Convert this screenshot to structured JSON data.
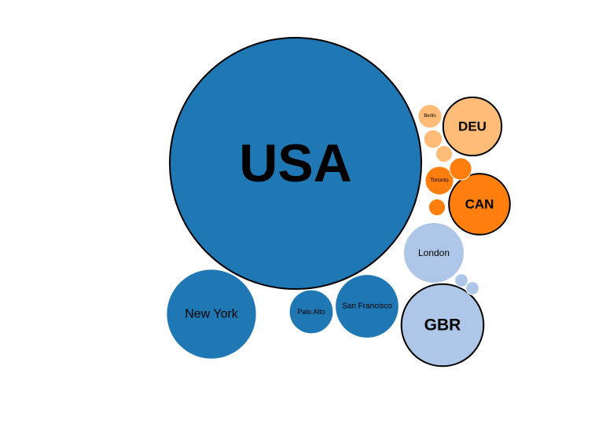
{
  "chart_data": {
    "type": "bubble",
    "title": "",
    "colors": {
      "USA": "#1f77b4",
      "DEU": "#ffbb78",
      "CAN": "#ff7f0e",
      "GBR": "#aec7e8"
    },
    "groups": [
      {
        "name": "USA",
        "label": "USA",
        "color_key": "USA",
        "cities": [
          {
            "label": "New York",
            "value": 13000
          },
          {
            "label": "San Francisco",
            "value": 6500
          },
          {
            "label": "Palo Alto",
            "value": 3100
          }
        ]
      },
      {
        "name": "DEU",
        "label": "DEU",
        "color_key": "DEU",
        "cities": [
          {
            "label": "Berlin",
            "value": 900
          },
          {
            "label": "",
            "value": 550
          },
          {
            "label": "",
            "value": 450
          }
        ]
      },
      {
        "name": "CAN",
        "label": "CAN",
        "color_key": "CAN",
        "cities": [
          {
            "label": "Toronto",
            "value": 1300
          },
          {
            "label": "",
            "value": 800
          },
          {
            "label": "",
            "value": 450
          }
        ]
      },
      {
        "name": "GBR",
        "label": "GBR",
        "color_key": "GBR",
        "cities": [
          {
            "label": "London",
            "value": 5900
          },
          {
            "label": "",
            "value": 280
          },
          {
            "label": "",
            "value": 280
          }
        ]
      }
    ],
    "group_values": {
      "USA": 102000,
      "DEU": 5500,
      "CAN": 6000,
      "GBR": 10900
    }
  }
}
